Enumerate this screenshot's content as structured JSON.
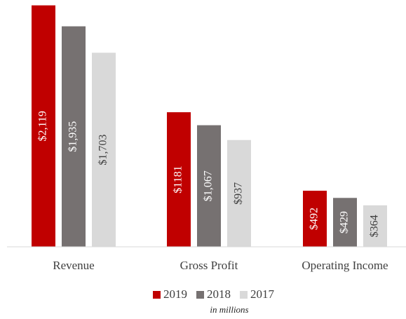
{
  "chart_data": {
    "type": "bar",
    "categories": [
      "Revenue",
      "Gross Profit",
      "Operating Income"
    ],
    "series": [
      {
        "name": "2019",
        "color": "#c00000",
        "values": [
          2119,
          1181,
          492
        ],
        "value_labels": [
          "$2,119",
          "$1181",
          "$492"
        ]
      },
      {
        "name": "2018",
        "color": "#767171",
        "values": [
          1935,
          1067,
          429
        ],
        "value_labels": [
          "$1,935",
          "$1,067",
          "$429"
        ]
      },
      {
        "name": "2017",
        "color": "#d9d9d9",
        "values": [
          1703,
          937,
          364
        ],
        "value_labels": [
          "$1,703",
          "$937",
          "$364"
        ]
      }
    ],
    "annotation": "in millions",
    "ylim": [
      0,
      2150
    ],
    "legend": "bottom"
  }
}
